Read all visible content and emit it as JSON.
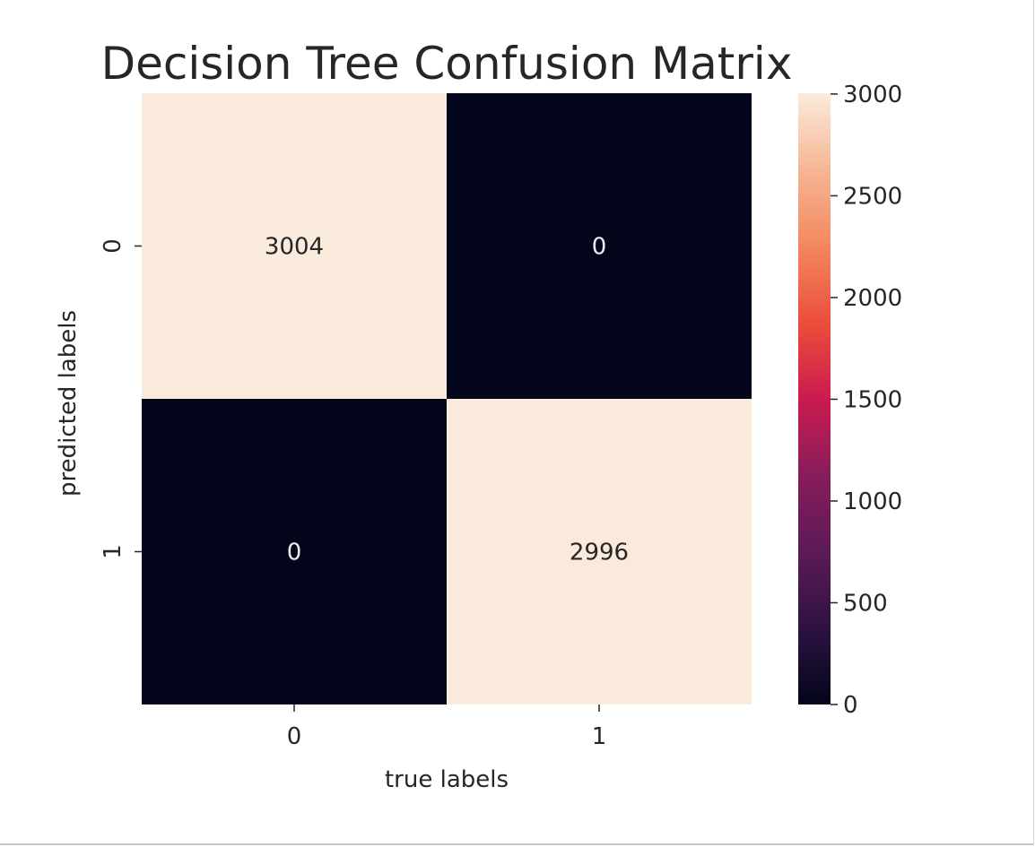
{
  "chart_data": {
    "type": "heatmap",
    "title": "Decision Tree Confusion Matrix",
    "xlabel": "true labels",
    "ylabel": "predicted labels",
    "x_categories": [
      "0",
      "1"
    ],
    "y_categories": [
      "0",
      "1"
    ],
    "matrix": [
      [
        3004,
        0
      ],
      [
        0,
        2996
      ]
    ],
    "cell_labels": [
      [
        "3004",
        "0"
      ],
      [
        "0",
        "2996"
      ]
    ],
    "colorbar": {
      "range": [
        0,
        3004
      ],
      "ticks": [
        0,
        500,
        1000,
        1500,
        2000,
        2500,
        3000
      ],
      "tick_labels": [
        "0",
        "500",
        "1000",
        "1500",
        "2000",
        "2500",
        "3000"
      ],
      "colormap": "rocket"
    },
    "colors": {
      "high": "#faebdd",
      "low": "#03051a",
      "text_on_high": "#262626",
      "text_on_low": "#ececec"
    }
  }
}
